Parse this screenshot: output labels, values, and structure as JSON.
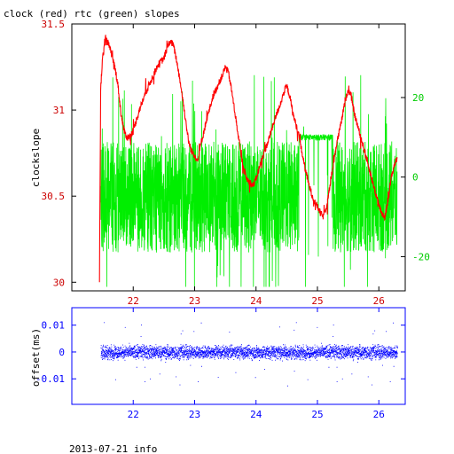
{
  "chart_data": [
    {
      "type": "line",
      "title": "clock (red) rtc (green) slopes",
      "ylabel_left": "clockslope",
      "x": {
        "ticks": [
          22,
          23,
          24,
          25,
          26
        ],
        "range": [
          21.0,
          26.43
        ]
      },
      "y_left": {
        "ticks": [
          30,
          30.5,
          31,
          31.5
        ],
        "tick_labels": [
          "30",
          "30.5",
          "31",
          "31.5"
        ],
        "range": [
          29.95,
          31.5
        ]
      },
      "y_right": {
        "ticks": [
          20,
          0,
          -20
        ],
        "range": [
          -28.6,
          38.5
        ]
      },
      "series": [
        {
          "color": "#ff0000",
          "axis": "left",
          "points": [
            [
              21.45,
              30.0
            ],
            [
              21.47,
              31.12
            ],
            [
              21.5,
              31.3
            ],
            [
              21.55,
              31.42
            ],
            [
              21.6,
              31.38
            ],
            [
              21.65,
              31.32
            ],
            [
              21.7,
              31.25
            ],
            [
              21.75,
              31.15
            ],
            [
              21.8,
              30.98
            ],
            [
              21.85,
              30.88
            ],
            [
              21.9,
              30.84
            ],
            [
              21.95,
              30.85
            ],
            [
              22.0,
              30.88
            ],
            [
              22.1,
              31.0
            ],
            [
              22.2,
              31.1
            ],
            [
              22.3,
              31.18
            ],
            [
              22.4,
              31.26
            ],
            [
              22.5,
              31.3
            ],
            [
              22.55,
              31.36
            ],
            [
              22.6,
              31.4
            ],
            [
              22.65,
              31.38
            ],
            [
              22.7,
              31.3
            ],
            [
              22.75,
              31.2
            ],
            [
              22.8,
              31.08
            ],
            [
              22.85,
              30.95
            ],
            [
              22.9,
              30.82
            ],
            [
              22.95,
              30.76
            ],
            [
              23.0,
              30.74
            ],
            [
              23.05,
              30.7
            ],
            [
              23.1,
              30.8
            ],
            [
              23.2,
              30.95
            ],
            [
              23.3,
              31.08
            ],
            [
              23.4,
              31.16
            ],
            [
              23.45,
              31.2
            ],
            [
              23.5,
              31.25
            ],
            [
              23.55,
              31.22
            ],
            [
              23.6,
              31.12
            ],
            [
              23.65,
              31.0
            ],
            [
              23.7,
              30.88
            ],
            [
              23.75,
              30.75
            ],
            [
              23.8,
              30.66
            ],
            [
              23.85,
              30.6
            ],
            [
              23.9,
              30.58
            ],
            [
              23.95,
              30.56
            ],
            [
              24.0,
              30.6
            ],
            [
              24.1,
              30.72
            ],
            [
              24.2,
              30.82
            ],
            [
              24.3,
              30.94
            ],
            [
              24.4,
              31.04
            ],
            [
              24.45,
              31.1
            ],
            [
              24.5,
              31.14
            ],
            [
              24.55,
              31.08
            ],
            [
              24.6,
              30.98
            ],
            [
              24.7,
              30.85
            ],
            [
              24.75,
              30.75
            ],
            [
              24.8,
              30.66
            ],
            [
              24.85,
              30.58
            ],
            [
              24.9,
              30.52
            ],
            [
              24.95,
              30.47
            ],
            [
              25.0,
              30.44
            ],
            [
              25.05,
              30.4
            ],
            [
              25.1,
              30.38
            ],
            [
              25.15,
              30.45
            ],
            [
              25.2,
              30.55
            ],
            [
              25.3,
              30.78
            ],
            [
              25.4,
              30.95
            ],
            [
              25.45,
              31.05
            ],
            [
              25.5,
              31.12
            ],
            [
              25.55,
              31.08
            ],
            [
              25.6,
              30.98
            ],
            [
              25.7,
              30.85
            ],
            [
              25.8,
              30.72
            ],
            [
              25.9,
              30.58
            ],
            [
              26.0,
              30.45
            ],
            [
              26.05,
              30.4
            ],
            [
              26.1,
              30.38
            ],
            [
              26.15,
              30.48
            ],
            [
              26.2,
              30.6
            ],
            [
              26.25,
              30.68
            ],
            [
              26.3,
              30.72
            ]
          ]
        },
        {
          "color": "#00ee00",
          "axis": "right",
          "span": [
            21.47,
            26.3
          ],
          "center": -5,
          "amplitude": 14,
          "flat": [
            24.7,
            25.25,
            10
          ]
        }
      ]
    },
    {
      "type": "scatter",
      "ylabel": "offset(ms)",
      "x": {
        "ticks": [
          22,
          23,
          24,
          25,
          26
        ],
        "range": [
          21.0,
          26.43
        ]
      },
      "y": {
        "ticks": [
          0.01,
          0,
          -0.01
        ],
        "tick_labels": [
          "0.01",
          "0",
          "-0.01"
        ],
        "range": [
          -0.0195,
          0.0165
        ]
      },
      "series": [
        {
          "color": "#0000ff",
          "span": [
            21.47,
            26.3
          ],
          "typical_abs": 0.002,
          "max_abs": 0.016
        }
      ]
    }
  ],
  "footer": "2013-07-21 info"
}
